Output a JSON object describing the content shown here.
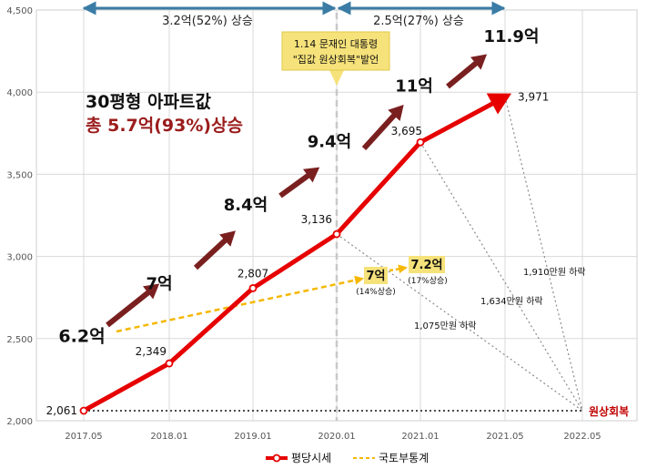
{
  "chart_data": {
    "type": "line",
    "x_ticks": [
      "2017.05",
      "2018.01",
      "2019.01",
      "2020.01",
      "2021.01",
      "2021.05",
      "2022.05"
    ],
    "ylim": [
      2000,
      4500
    ],
    "y_ticks": [
      "2,000",
      "2,500",
      "3,000",
      "3,500",
      "4,000",
      "4,500"
    ],
    "grid": true,
    "legend_position": "bottom",
    "series": [
      {
        "name": "평당시세",
        "color": "#e60000",
        "points": [
          {
            "x": "2017.05",
            "y": 2061,
            "label": "2,061"
          },
          {
            "x": "2018.01",
            "y": 2349,
            "label": "2,349"
          },
          {
            "x": "2019.01",
            "y": 2807,
            "label": "2,807"
          },
          {
            "x": "2020.01",
            "y": 3136,
            "label": "3,136"
          },
          {
            "x": "2021.01",
            "y": 3695,
            "label": "3,695"
          },
          {
            "x": "2021.05",
            "y": 3971,
            "label": "3,971"
          }
        ]
      },
      {
        "name": "국토부통계",
        "color": "#f5b800",
        "points": [
          {
            "x": "2017.05",
            "y": 2550
          },
          {
            "x": "2020.01",
            "y": 2880
          }
        ]
      }
    ],
    "price_labels": [
      {
        "text": "6.2억",
        "x": "2017.05",
        "y": 2480
      },
      {
        "text": "7억",
        "x": "2018.01",
        "y": 2800
      },
      {
        "text": "8.4억",
        "x": "2019.01",
        "y": 3280
      },
      {
        "text": "9.4억",
        "x": "2020.01",
        "y": 3665
      },
      {
        "text": "11억",
        "x": "2021.01",
        "y": 4005
      },
      {
        "text": "11.9억",
        "x": "2021.05",
        "y": 4305
      }
    ],
    "period_labels": [
      "3.2억(52%) 상승",
      "2.5억(27%) 상승"
    ],
    "headline": {
      "line1": "30평형 아파트값",
      "line2": "총 5.7억(93%)상승"
    },
    "event_note": {
      "line1": "1.14 문재인 대통령",
      "line2": "\"집값 원상회복\"발언"
    },
    "official_labels": [
      {
        "main": "7억",
        "sub": "(14%상승)"
      },
      {
        "main": "7.2억",
        "sub": "(17%상승)"
      }
    ],
    "drop_labels": [
      "1,910만원 하락",
      "1,634만원 하락",
      "1,075만원 하락"
    ],
    "restore_label": "원상회복"
  }
}
